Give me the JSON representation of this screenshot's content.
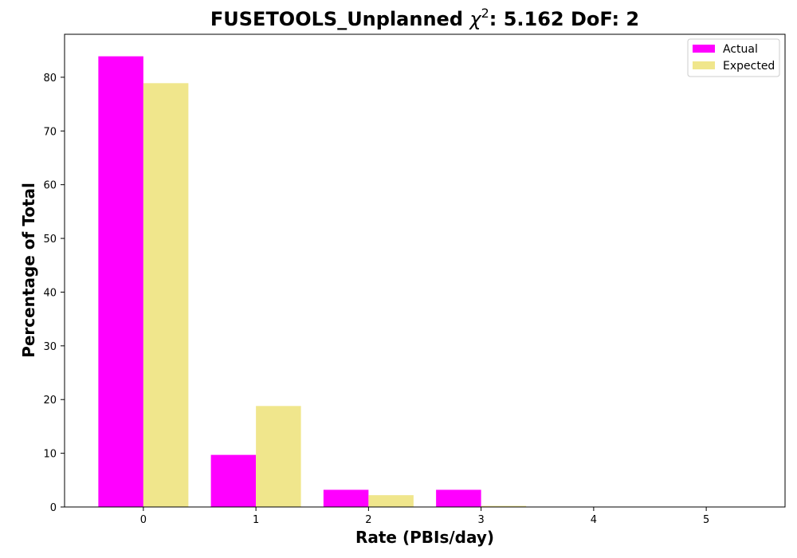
{
  "chart_data": {
    "type": "bar",
    "title_prefix": "FUSETOOLS_Unplanned ",
    "title_chi": "χ",
    "title_sup": "2",
    "title_suffix": ": 5.162 DoF: 2",
    "xlabel": "Rate (PBIs/day)",
    "ylabel": "Percentage of Total",
    "categories": [
      "0",
      "1",
      "2",
      "3",
      "4",
      "5"
    ],
    "x": [
      0,
      1,
      2,
      3,
      4,
      5
    ],
    "series": [
      {
        "name": "Actual",
        "color": "#ff00ff",
        "values": [
          83.9,
          9.7,
          3.2,
          3.2,
          0,
          0
        ]
      },
      {
        "name": "Expected",
        "color": "#f0e68c",
        "values": [
          78.9,
          18.8,
          2.2,
          0.2,
          0,
          0
        ]
      }
    ],
    "yticks": [
      0,
      10,
      20,
      30,
      40,
      50,
      60,
      70,
      80
    ],
    "xlim": [
      -0.7,
      5.7
    ],
    "ylim": [
      0,
      88
    ],
    "legend_position": "top-right",
    "grid": false
  }
}
